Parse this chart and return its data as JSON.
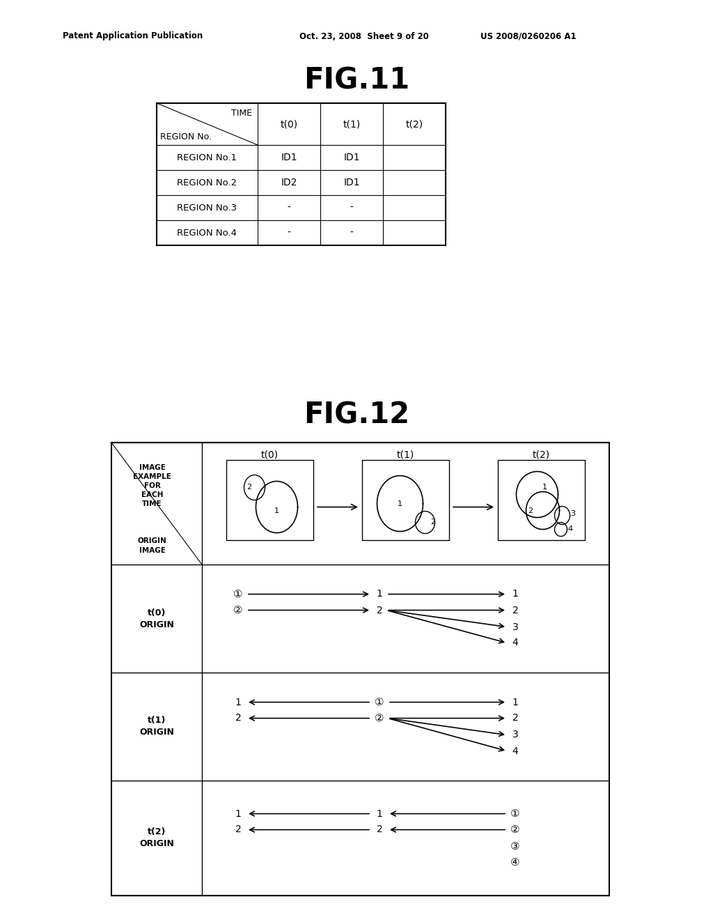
{
  "background_color": "#ffffff",
  "header_left": "Patent Application Publication",
  "header_mid": "Oct. 23, 2008  Sheet 9 of 20",
  "header_right": "US 2008/0260206 A1",
  "fig11_title": "FIG.11",
  "fig12_title": "FIG.12",
  "fig11_table": {
    "col_headers": [
      "t(0)",
      "t(1)",
      "t(2)"
    ],
    "diag_top": "TIME",
    "diag_bot": "REGION No.",
    "rows": [
      [
        "REGION No.1",
        "ID1",
        "ID1",
        ""
      ],
      [
        "REGION No.2",
        "ID2",
        "ID1",
        ""
      ],
      [
        "REGION No.3",
        "-",
        "-",
        ""
      ],
      [
        "REGION No.4",
        "-",
        "-",
        ""
      ]
    ]
  }
}
